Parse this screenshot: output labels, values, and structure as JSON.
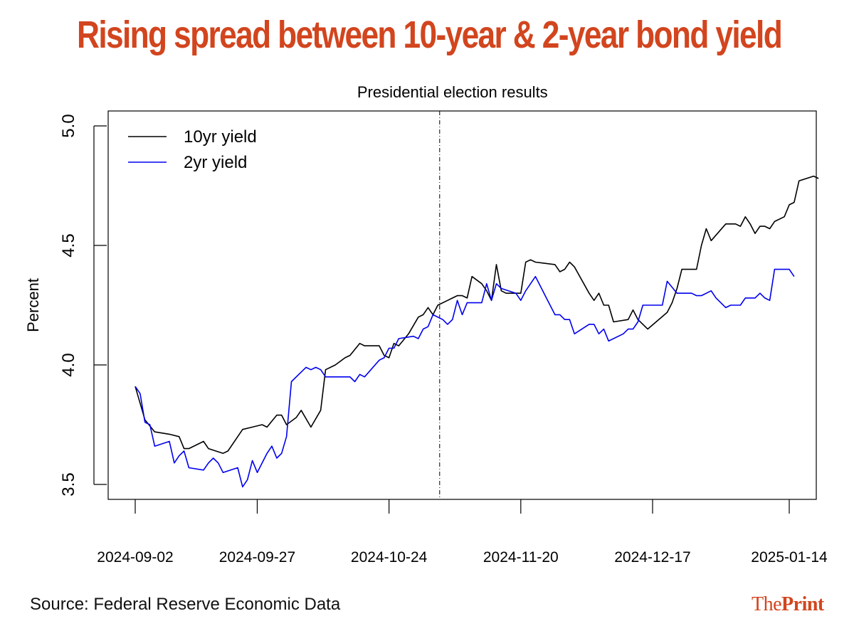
{
  "headline": "Rising spread between 10-year & 2-year bond yield",
  "source": "Source: Federal Reserve Economic Data",
  "logo": {
    "the": "The",
    "print": "Print"
  },
  "colors": {
    "headline": "#d2451e",
    "line10": "#000000",
    "line2": "#0000ee",
    "logo": "#d2451e"
  },
  "chart_data": {
    "type": "line",
    "ylabel": "Percent",
    "ylim": [
      3.5,
      5.0
    ],
    "yticks": [
      "3.5",
      "4.0",
      "4.5",
      "5.0"
    ],
    "xticks": [
      {
        "label": "2024-09-02",
        "date": "2024-09-02"
      },
      {
        "label": "2024-09-27",
        "date": "2024-09-27"
      },
      {
        "label": "2024-10-24",
        "date": "2024-10-24"
      },
      {
        "label": "2024-11-20",
        "date": "2024-11-20"
      },
      {
        "label": "2024-12-17",
        "date": "2024-12-17"
      },
      {
        "label": "2025-01-14",
        "date": "2025-01-14"
      }
    ],
    "xlim": [
      "2024-08-29",
      "2025-01-17"
    ],
    "annotation": {
      "label": "Presidential election results",
      "date": "2024-11-06"
    },
    "legend": {
      "placement": "top-left"
    },
    "series": [
      {
        "name": "10yr yield",
        "color": "#000000",
        "points": [
          [
            "2024-09-02",
            3.91
          ],
          [
            "2024-09-04",
            3.77
          ],
          [
            "2024-09-06",
            3.72
          ],
          [
            "2024-09-09",
            3.71
          ],
          [
            "2024-09-11",
            3.7
          ],
          [
            "2024-09-12",
            3.65
          ],
          [
            "2024-09-13",
            3.65
          ],
          [
            "2024-09-16",
            3.68
          ],
          [
            "2024-09-17",
            3.65
          ],
          [
            "2024-09-20",
            3.63
          ],
          [
            "2024-09-21",
            3.64
          ],
          [
            "2024-09-23",
            3.7
          ],
          [
            "2024-09-24",
            3.73
          ],
          [
            "2024-09-26",
            3.74
          ],
          [
            "2024-09-28",
            3.75
          ],
          [
            "2024-09-29",
            3.74
          ],
          [
            "2024-10-01",
            3.79
          ],
          [
            "2024-10-02",
            3.79
          ],
          [
            "2024-10-03",
            3.75
          ],
          [
            "2024-10-05",
            3.78
          ],
          [
            "2024-10-06",
            3.81
          ],
          [
            "2024-10-08",
            3.74
          ],
          [
            "2024-10-10",
            3.81
          ],
          [
            "2024-10-11",
            3.98
          ],
          [
            "2024-10-13",
            4.0
          ],
          [
            "2024-10-15",
            4.03
          ],
          [
            "2024-10-16",
            4.04
          ],
          [
            "2024-10-18",
            4.09
          ],
          [
            "2024-10-19",
            4.08
          ],
          [
            "2024-10-22",
            4.08
          ],
          [
            "2024-10-23",
            4.04
          ],
          [
            "2024-10-24",
            4.03
          ],
          [
            "2024-10-25",
            4.09
          ],
          [
            "2024-10-26",
            4.08
          ],
          [
            "2024-10-28",
            4.13
          ],
          [
            "2024-10-30",
            4.2
          ],
          [
            "2024-10-31",
            4.21
          ],
          [
            "2024-11-01",
            4.24
          ],
          [
            "2024-11-02",
            4.21
          ],
          [
            "2024-11-03",
            4.25
          ],
          [
            "2024-11-05",
            4.27
          ],
          [
            "2024-11-07",
            4.29
          ],
          [
            "2024-11-08",
            4.29
          ],
          [
            "2024-11-09",
            4.28
          ],
          [
            "2024-11-10",
            4.37
          ],
          [
            "2024-11-12",
            4.34
          ],
          [
            "2024-11-13",
            4.31
          ],
          [
            "2024-11-14",
            4.27
          ],
          [
            "2024-11-15",
            4.42
          ],
          [
            "2024-11-16",
            4.31
          ],
          [
            "2024-11-17",
            4.3
          ],
          [
            "2024-11-20",
            4.3
          ],
          [
            "2024-11-21",
            4.43
          ],
          [
            "2024-11-22",
            4.44
          ],
          [
            "2024-11-23",
            4.43
          ],
          [
            "2024-11-27",
            4.42
          ],
          [
            "2024-11-28",
            4.39
          ],
          [
            "2024-11-29",
            4.4
          ],
          [
            "2024-11-30",
            4.43
          ],
          [
            "2024-12-01",
            4.41
          ],
          [
            "2024-12-04",
            4.3
          ],
          [
            "2024-12-05",
            4.27
          ],
          [
            "2024-12-06",
            4.3
          ],
          [
            "2024-12-07",
            4.25
          ],
          [
            "2024-12-08",
            4.25
          ],
          [
            "2024-12-09",
            4.18
          ],
          [
            "2024-12-12",
            4.19
          ],
          [
            "2024-12-13",
            4.23
          ],
          [
            "2024-12-14",
            4.19
          ],
          [
            "2024-12-16",
            4.15
          ],
          [
            "2024-12-20",
            4.22
          ],
          [
            "2024-12-21",
            4.26
          ],
          [
            "2024-12-22",
            4.32
          ],
          [
            "2024-12-23",
            4.4
          ],
          [
            "2024-12-26",
            4.4
          ],
          [
            "2024-12-27",
            4.5
          ],
          [
            "2024-12-28",
            4.57
          ],
          [
            "2024-12-29",
            4.52
          ],
          [
            "2025-01-01",
            4.59
          ],
          [
            "2025-01-03",
            4.59
          ],
          [
            "2025-01-04",
            4.58
          ],
          [
            "2025-01-05",
            4.62
          ],
          [
            "2025-01-06",
            4.59
          ],
          [
            "2025-01-07",
            4.55
          ],
          [
            "2025-01-08",
            4.58
          ],
          [
            "2025-01-09",
            4.58
          ],
          [
            "2025-01-10",
            4.57
          ],
          [
            "2025-01-11",
            4.6
          ],
          [
            "2025-01-13",
            4.62
          ],
          [
            "2025-01-14",
            4.67
          ],
          [
            "2025-01-15",
            4.68
          ],
          [
            "2025-01-16",
            4.77
          ],
          [
            "2025-01-19",
            4.79
          ],
          [
            "2025-01-20",
            4.78
          ]
        ]
      },
      {
        "name": "2yr yield",
        "color": "#0000ee",
        "points": [
          [
            "2024-09-02",
            3.91
          ],
          [
            "2024-09-03",
            3.88
          ],
          [
            "2024-09-04",
            3.76
          ],
          [
            "2024-09-05",
            3.75
          ],
          [
            "2024-09-06",
            3.66
          ],
          [
            "2024-09-09",
            3.68
          ],
          [
            "2024-09-10",
            3.59
          ],
          [
            "2024-09-11",
            3.62
          ],
          [
            "2024-09-12",
            3.64
          ],
          [
            "2024-09-13",
            3.57
          ],
          [
            "2024-09-16",
            3.56
          ],
          [
            "2024-09-17",
            3.59
          ],
          [
            "2024-09-18",
            3.61
          ],
          [
            "2024-09-19",
            3.59
          ],
          [
            "2024-09-20",
            3.55
          ],
          [
            "2024-09-23",
            3.57
          ],
          [
            "2024-09-24",
            3.49
          ],
          [
            "2024-09-25",
            3.52
          ],
          [
            "2024-09-26",
            3.6
          ],
          [
            "2024-09-27",
            3.55
          ],
          [
            "2024-09-29",
            3.63
          ],
          [
            "2024-09-30",
            3.66
          ],
          [
            "2024-10-01",
            3.61
          ],
          [
            "2024-10-02",
            3.63
          ],
          [
            "2024-10-03",
            3.7
          ],
          [
            "2024-10-04",
            3.93
          ],
          [
            "2024-10-06",
            3.97
          ],
          [
            "2024-10-07",
            3.99
          ],
          [
            "2024-10-08",
            3.98
          ],
          [
            "2024-10-09",
            3.99
          ],
          [
            "2024-10-10",
            3.98
          ],
          [
            "2024-10-11",
            3.95
          ],
          [
            "2024-10-14",
            3.95
          ],
          [
            "2024-10-16",
            3.95
          ],
          [
            "2024-10-17",
            3.93
          ],
          [
            "2024-10-18",
            3.96
          ],
          [
            "2024-10-19",
            3.95
          ],
          [
            "2024-10-22",
            4.02
          ],
          [
            "2024-10-23",
            4.03
          ],
          [
            "2024-10-24",
            4.07
          ],
          [
            "2024-10-25",
            4.07
          ],
          [
            "2024-10-26",
            4.11
          ],
          [
            "2024-10-29",
            4.12
          ],
          [
            "2024-10-30",
            4.11
          ],
          [
            "2024-10-31",
            4.15
          ],
          [
            "2024-11-01",
            4.16
          ],
          [
            "2024-11-02",
            4.21
          ],
          [
            "2024-11-04",
            4.19
          ],
          [
            "2024-11-05",
            4.17
          ],
          [
            "2024-11-06",
            4.19
          ],
          [
            "2024-11-07",
            4.27
          ],
          [
            "2024-11-08",
            4.21
          ],
          [
            "2024-11-09",
            4.26
          ],
          [
            "2024-11-12",
            4.26
          ],
          [
            "2024-11-13",
            4.34
          ],
          [
            "2024-11-14",
            4.27
          ],
          [
            "2024-11-15",
            4.34
          ],
          [
            "2024-11-16",
            4.32
          ],
          [
            "2024-11-19",
            4.3
          ],
          [
            "2024-11-20",
            4.27
          ],
          [
            "2024-11-21",
            4.31
          ],
          [
            "2024-11-23",
            4.37
          ],
          [
            "2024-11-25",
            4.29
          ],
          [
            "2024-11-27",
            4.21
          ],
          [
            "2024-11-28",
            4.21
          ],
          [
            "2024-11-29",
            4.19
          ],
          [
            "2024-11-30",
            4.19
          ],
          [
            "2024-12-01",
            4.13
          ],
          [
            "2024-12-04",
            4.17
          ],
          [
            "2024-12-05",
            4.17
          ],
          [
            "2024-12-06",
            4.13
          ],
          [
            "2024-12-07",
            4.15
          ],
          [
            "2024-12-08",
            4.1
          ],
          [
            "2024-12-11",
            4.13
          ],
          [
            "2024-12-12",
            4.15
          ],
          [
            "2024-12-13",
            4.15
          ],
          [
            "2024-12-14",
            4.18
          ],
          [
            "2024-12-15",
            4.25
          ],
          [
            "2024-12-19",
            4.25
          ],
          [
            "2024-12-20",
            4.35
          ],
          [
            "2024-12-22",
            4.3
          ],
          [
            "2024-12-25",
            4.3
          ],
          [
            "2024-12-26",
            4.29
          ],
          [
            "2024-12-27",
            4.29
          ],
          [
            "2024-12-29",
            4.31
          ],
          [
            "2024-12-30",
            4.28
          ],
          [
            "2025-01-01",
            4.24
          ],
          [
            "2025-01-02",
            4.25
          ],
          [
            "2025-01-04",
            4.25
          ],
          [
            "2025-01-05",
            4.28
          ],
          [
            "2025-01-07",
            4.28
          ],
          [
            "2025-01-08",
            4.3
          ],
          [
            "2025-01-09",
            4.28
          ],
          [
            "2025-01-10",
            4.27
          ],
          [
            "2025-01-11",
            4.4
          ],
          [
            "2025-01-14",
            4.4
          ],
          [
            "2025-01-15",
            4.37
          ]
        ]
      }
    ]
  }
}
